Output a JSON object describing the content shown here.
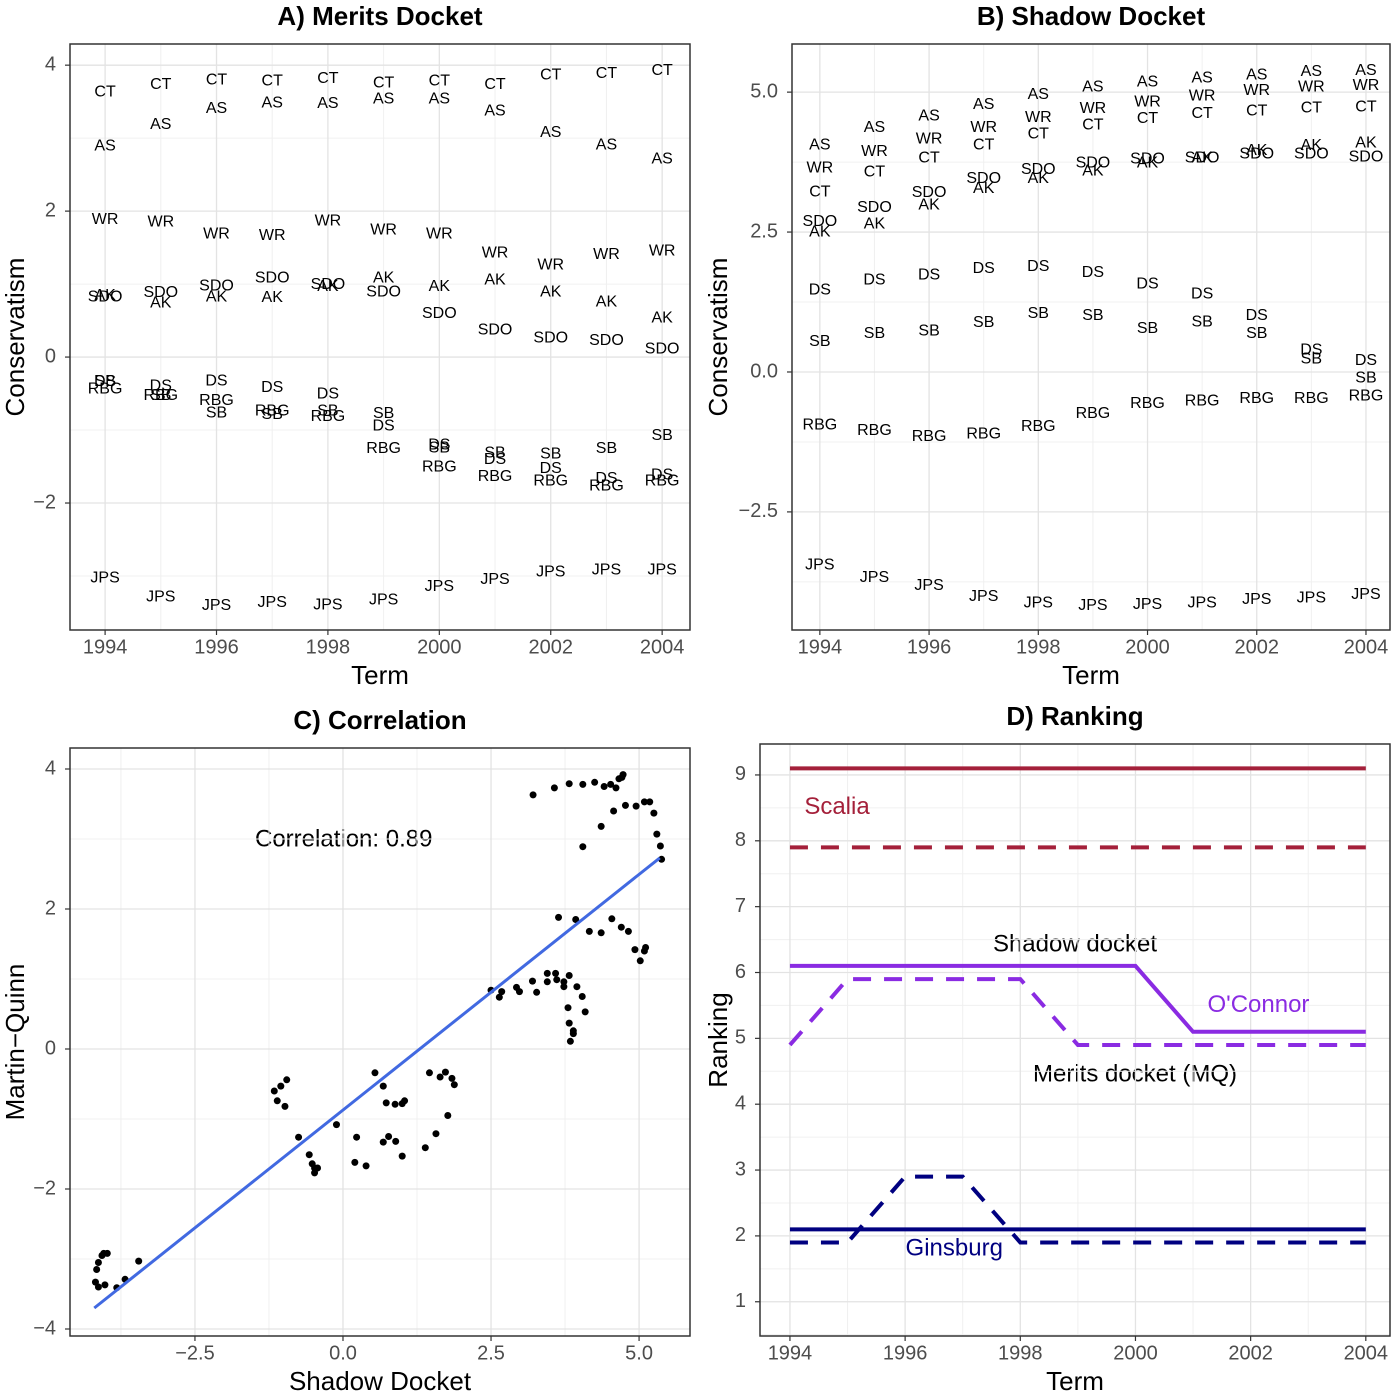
{
  "chart_data": [
    {
      "type": "text",
      "title": "A) Merits Docket",
      "x_label": "Term",
      "y_label": "Conservatism",
      "x": [
        1994,
        1995,
        1996,
        1997,
        1998,
        1999,
        2000,
        2001,
        2002,
        2003,
        2004
      ],
      "xlim": [
        1993.37,
        2004.5
      ],
      "xticks": [
        1994,
        1996,
        1998,
        2000,
        2002,
        2004
      ],
      "ylim": [
        -3.74,
        4.29
      ],
      "yticks": [
        {
          "value": -2,
          "label": "−2"
        },
        0,
        2,
        4
      ],
      "grid": true,
      "series": [
        {
          "name": "CT",
          "values": [
            3.63,
            3.73,
            3.79,
            3.78,
            3.81,
            3.75,
            3.78,
            3.73,
            3.86,
            3.88,
            3.92
          ]
        },
        {
          "name": "AS",
          "values": [
            2.89,
            3.18,
            3.4,
            3.48,
            3.47,
            3.53,
            3.53,
            3.37,
            3.07,
            2.9,
            2.71
          ]
        },
        {
          "name": "WR",
          "values": [
            1.88,
            1.85,
            1.68,
            1.66,
            1.86,
            1.74,
            1.68,
            1.42,
            1.26,
            1.4,
            1.45
          ]
        },
        {
          "name": "SDO",
          "values": [
            0.82,
            0.88,
            0.97,
            1.08,
            0.99,
            0.89,
            0.59,
            0.37,
            0.26,
            0.22,
            0.11
          ]
        },
        {
          "name": "AK",
          "values": [
            0.84,
            0.74,
            0.82,
            0.81,
            0.96,
            1.08,
            0.96,
            1.05,
            0.89,
            0.75,
            0.53
          ]
        },
        {
          "name": "DS",
          "values": [
            -0.34,
            -0.4,
            -0.33,
            -0.42,
            -0.51,
            -0.95,
            -1.21,
            -1.41,
            -1.53,
            -1.67,
            -1.62
          ]
        },
        {
          "name": "SB",
          "values": [
            -0.34,
            -0.53,
            -0.77,
            -0.79,
            -0.74,
            -0.78,
            -1.25,
            -1.32,
            -1.33,
            -1.26,
            -1.08
          ]
        },
        {
          "name": "RBG",
          "values": [
            -0.44,
            -0.53,
            -0.6,
            -0.74,
            -0.82,
            -1.26,
            -1.51,
            -1.64,
            -1.7,
            -1.77,
            -1.7
          ]
        },
        {
          "name": "JPS",
          "values": [
            -3.03,
            -3.29,
            -3.41,
            -3.37,
            -3.4,
            -3.33,
            -3.15,
            -3.05,
            -2.95,
            -2.92,
            -2.92
          ]
        }
      ]
    },
    {
      "type": "text",
      "title": "B) Shadow Docket",
      "x_label": "Term",
      "y_label": "Conservatism",
      "x": [
        1994,
        1995,
        1996,
        1997,
        1998,
        1999,
        2000,
        2001,
        2002,
        2003,
        2004
      ],
      "xlim": [
        1993.49,
        2004.44
      ],
      "xticks": [
        1994,
        1996,
        1998,
        2000,
        2002,
        2004
      ],
      "ylim": [
        -4.61,
        5.86
      ],
      "yticks": [
        {
          "value": -2.5,
          "label": "−2.5"
        },
        {
          "value": 0,
          "label": "0.0"
        },
        2.5,
        {
          "value": 5,
          "label": "5.0"
        }
      ],
      "grid": true,
      "series": [
        {
          "name": "CT",
          "values": [
            3.21,
            3.57,
            3.82,
            4.05,
            4.25,
            4.41,
            4.52,
            4.61,
            4.66,
            4.71,
            4.73
          ]
        },
        {
          "name": "AS",
          "values": [
            4.05,
            4.36,
            4.57,
            4.77,
            4.95,
            5.09,
            5.18,
            5.25,
            5.3,
            5.36,
            5.38
          ]
        },
        {
          "name": "WR",
          "values": [
            3.64,
            3.93,
            4.16,
            4.36,
            4.54,
            4.7,
            4.82,
            4.93,
            5.02,
            5.09,
            5.11
          ]
        },
        {
          "name": "SDO",
          "values": [
            2.68,
            2.93,
            3.2,
            3.45,
            3.61,
            3.73,
            3.8,
            3.82,
            3.89,
            3.89,
            3.84
          ]
        },
        {
          "name": "AK",
          "values": [
            2.5,
            2.64,
            2.98,
            3.27,
            3.45,
            3.59,
            3.73,
            3.82,
            3.95,
            4.04,
            4.09
          ]
        },
        {
          "name": "DS",
          "values": [
            1.46,
            1.64,
            1.73,
            1.84,
            1.88,
            1.77,
            1.57,
            1.39,
            1.0,
            0.39,
            0.2
          ]
        },
        {
          "name": "SB",
          "values": [
            0.54,
            0.68,
            0.73,
            0.88,
            1.04,
            1.0,
            0.77,
            0.89,
            0.68,
            0.23,
            -0.11
          ]
        },
        {
          "name": "RBG",
          "values": [
            -0.95,
            -1.05,
            -1.16,
            -1.11,
            -0.98,
            -0.75,
            -0.57,
            -0.52,
            -0.48,
            -0.48,
            -0.43
          ]
        },
        {
          "name": "JPS",
          "values": [
            -3.45,
            -3.68,
            -3.82,
            -4.02,
            -4.13,
            -4.18,
            -4.16,
            -4.13,
            -4.07,
            -4.04,
            -3.98
          ]
        }
      ]
    },
    {
      "type": "scatter",
      "title": "C) Correlation",
      "x_label": "Shadow Docket",
      "y_label": "Martin−Quinn",
      "annotation": "Correlation: 0.89",
      "point_color": "#000000",
      "xlim": [
        -4.61,
        5.86
      ],
      "xticks": [
        {
          "value": -2.5,
          "label": "−2.5"
        },
        {
          "value": 0,
          "label": "0.0"
        },
        2.5,
        {
          "value": 5,
          "label": "5.0"
        }
      ],
      "ylim": [
        -4.1,
        4.3
      ],
      "yticks": [
        {
          "value": -4,
          "label": "−4"
        },
        {
          "value": -2,
          "label": "−2"
        },
        0,
        2,
        4
      ],
      "grid": true,
      "fit": {
        "color": "#4169e1",
        "x": [
          -4.2,
          5.35
        ],
        "y": [
          -3.7,
          2.73
        ]
      }
    },
    {
      "type": "line",
      "title": "D) Ranking",
      "x_label": "Term",
      "y_label": "Ranking",
      "annotations": [
        "Shadow docket",
        "Merits docket (MQ)"
      ],
      "x": [
        1994,
        1995,
        1996,
        1997,
        1998,
        1999,
        2000,
        2001,
        2002,
        2003,
        2004
      ],
      "xlim": [
        1993.48,
        2004.42
      ],
      "xticks": [
        1994,
        1996,
        1998,
        2000,
        2002,
        2004
      ],
      "ylim": [
        0.48,
        9.47
      ],
      "yticks": [
        1,
        2,
        3,
        4,
        5,
        6,
        7,
        8,
        9
      ],
      "grid": true,
      "series": [
        {
          "name": "Scalia",
          "color": "#a4203a",
          "dashed": false,
          "values": [
            9.1,
            9.1,
            9.1,
            9.1,
            9.1,
            9.1,
            9.1,
            9.1,
            9.1,
            9.1,
            9.1
          ]
        },
        {
          "color": "#a4203a",
          "dashed": true,
          "values": [
            7.9,
            7.9,
            7.9,
            7.9,
            7.9,
            7.9,
            7.9,
            7.9,
            7.9,
            7.9,
            7.9
          ]
        },
        {
          "name": "O'Connor",
          "color": "#8a2be2",
          "dashed": false,
          "values": [
            6.1,
            6.1,
            6.1,
            6.1,
            6.1,
            6.1,
            6.1,
            5.1,
            5.1,
            5.1,
            5.1
          ]
        },
        {
          "color": "#8a2be2",
          "dashed": true,
          "values": [
            4.9,
            5.9,
            5.9,
            5.9,
            5.9,
            4.9,
            4.9,
            4.9,
            4.9,
            4.9,
            4.9
          ]
        },
        {
          "name": "Ginsburg",
          "color": "#000080",
          "dashed": false,
          "values": [
            2.1,
            2.1,
            2.1,
            2.1,
            2.1,
            2.1,
            2.1,
            2.1,
            2.1,
            2.1,
            2.1
          ]
        },
        {
          "color": "#000080",
          "dashed": true,
          "values": [
            1.9,
            1.9,
            2.9,
            2.9,
            1.9,
            1.9,
            1.9,
            1.9,
            1.9,
            1.9,
            1.9
          ]
        }
      ]
    }
  ]
}
